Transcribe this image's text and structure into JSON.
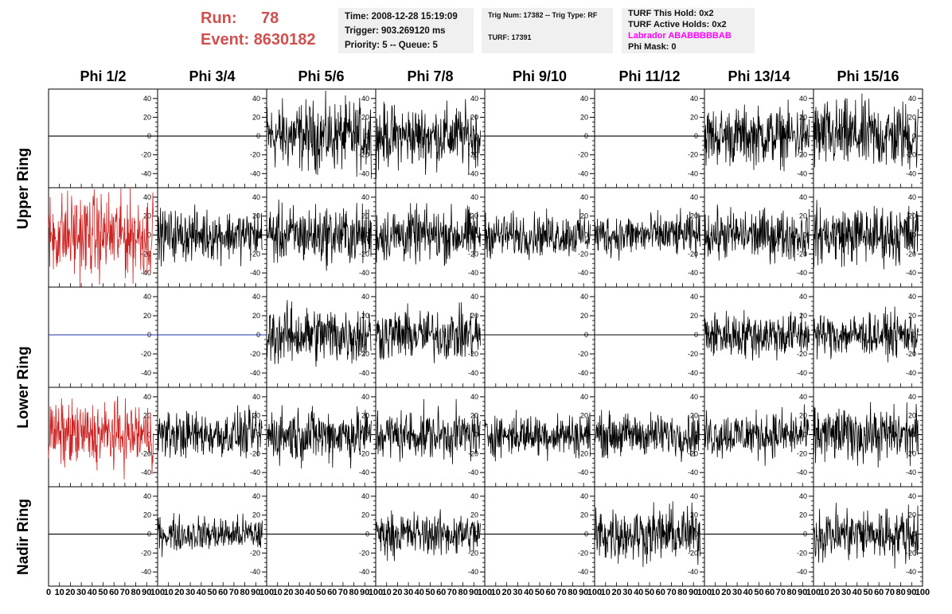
{
  "header": {
    "run_label": "Run:",
    "run_value": "78",
    "event_label": "Event:",
    "event_value": "8630182",
    "time_line": "Time: 2008-12-28 15:19:09",
    "trigger_line": "Trigger: 903.269120 ms",
    "priority_line": "Priority: 5 -- Queue: 5",
    "trig_line": "Trig Num: 17382 -- Trig Type: RF",
    "turf_line": "TURF: 17391",
    "turf_hold_line": "TURF This Hold: 0x2",
    "turf_active_line": "TURF Active Holds: 0x2",
    "labrador_line": "Labrador ABABBBBBAB",
    "phi_mask_line": "Phi Mask: 0"
  },
  "chart_data": {
    "type": "line",
    "columns": [
      "Phi 1/2",
      "Phi 3/4",
      "Phi 5/6",
      "Phi 7/8",
      "Phi 9/10",
      "Phi 11/12",
      "Phi 13/14",
      "Phi 15/16"
    ],
    "rows": [
      "Upper Ring",
      "Lower Ring",
      "Nadir Ring"
    ],
    "panel_rows": 5,
    "xlim": [
      0,
      100
    ],
    "ylim": [
      -55,
      50
    ],
    "y_ticks": [
      -40,
      -20,
      0,
      20,
      40
    ],
    "x_tick_labels": [
      "0",
      "10",
      "20",
      "30",
      "40",
      "50",
      "60",
      "70",
      "80",
      "90",
      "100"
    ],
    "colors": {
      "trace": "#000000",
      "highlight": "#cc2222",
      "flat_blue": "#2233aa"
    },
    "panels": [
      [
        "flat",
        "flat",
        "trace",
        "trace",
        "flat",
        "flat",
        "trace",
        "trace"
      ],
      [
        "red",
        "trace",
        "trace",
        "trace",
        "trace",
        "trace",
        "trace",
        "trace"
      ],
      [
        "blue",
        "blue",
        "trace",
        "trace",
        "flat",
        "flat",
        "trace",
        "trace"
      ],
      [
        "red",
        "trace",
        "trace",
        "trace",
        "trace",
        "trace",
        "trace",
        "trace"
      ],
      [
        "flat",
        "trace",
        "flat",
        "trace",
        "flat",
        "trace",
        "flat",
        "trace"
      ]
    ],
    "amplitudes": [
      [
        0,
        0,
        18,
        16,
        0,
        0,
        15,
        18
      ],
      [
        22,
        13,
        15,
        14,
        11,
        11,
        13,
        15
      ],
      [
        0,
        0,
        15,
        13,
        0,
        0,
        12,
        11
      ],
      [
        17,
        12,
        14,
        13,
        11,
        11,
        12,
        14
      ],
      [
        0,
        9,
        0,
        11,
        0,
        14,
        0,
        14
      ]
    ],
    "trace_x_max": 96,
    "samples_per_trace": 260
  }
}
